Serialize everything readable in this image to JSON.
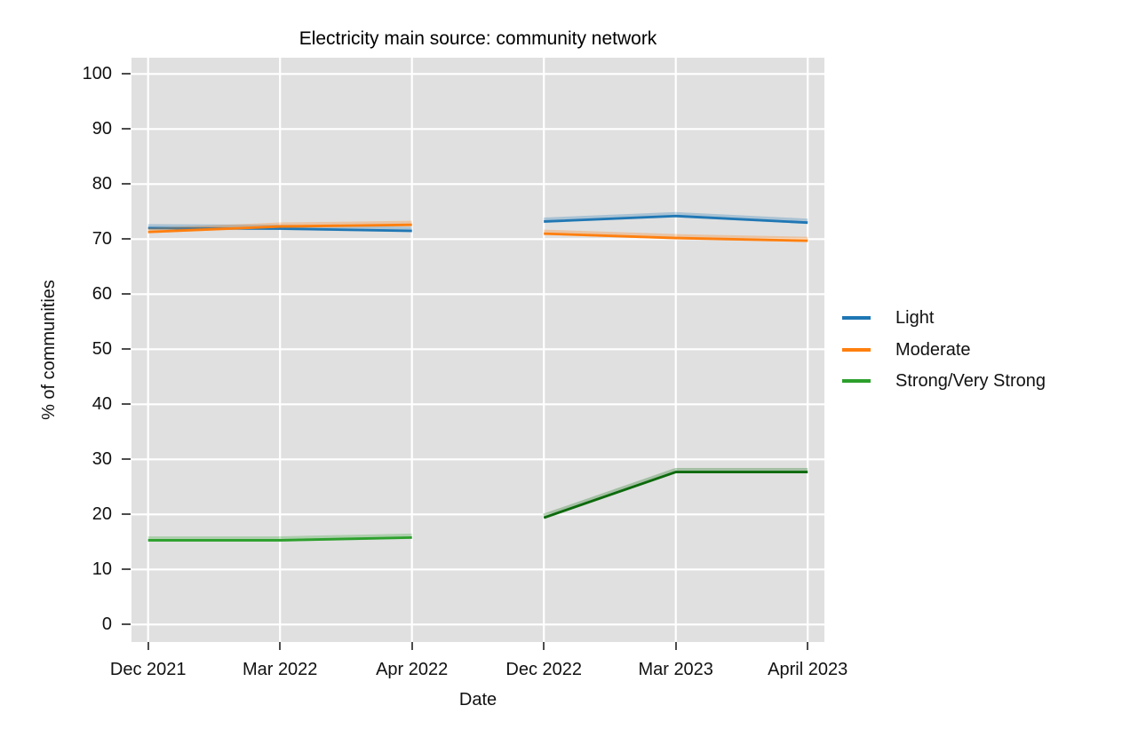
{
  "chart_data": {
    "type": "line",
    "title": "Electricity main source: community network",
    "xlabel": "Date",
    "ylabel": "% of communities",
    "ylim": [
      0,
      100
    ],
    "ytick_step": 10,
    "ytick_labels": [
      "0",
      "10",
      "20",
      "30",
      "40",
      "50",
      "60",
      "70",
      "80",
      "90",
      "100"
    ],
    "categories": [
      "Dec 2021",
      "Mar 2022",
      "Apr 2022",
      "Dec 2022",
      "Mar 2023",
      "April 2023"
    ],
    "gap_between_indices": [
      2,
      3
    ],
    "grid": "major-white-on-gray",
    "panel_background": "#e0e0e0",
    "gridline_color": "#ffffff",
    "legend_position": "right-middle",
    "series": [
      {
        "name": "Light",
        "color": "#1f77b4",
        "color_segment2": "#1f77b4",
        "values": [
          72.0,
          71.9,
          71.5,
          73.2,
          74.2,
          73.0
        ]
      },
      {
        "name": "Moderate",
        "color": "#ff7f0e",
        "color_segment2": "#ff7f0e",
        "values": [
          71.3,
          72.3,
          72.6,
          71.0,
          70.2,
          69.7
        ]
      },
      {
        "name": "Strong/Very Strong",
        "color": "#2ca02c",
        "color_segment2": "#0c6a0c",
        "values": [
          15.3,
          15.3,
          15.8,
          19.4,
          27.7,
          27.7
        ]
      }
    ]
  }
}
